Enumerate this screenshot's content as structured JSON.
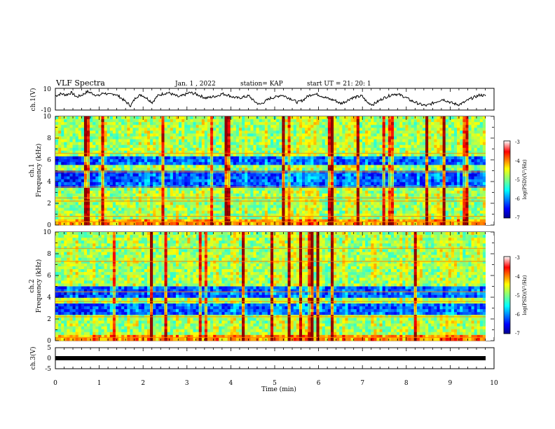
{
  "header": {
    "title": "VLF Spectra",
    "date": "Jan. 1 , 2022",
    "station": "station= KAP",
    "start": "start UT =  21: 20: 1"
  },
  "chart_data": [
    {
      "type": "line",
      "ylabel": "ch.1(V)",
      "ylim": [
        -10,
        10
      ],
      "yticks": [
        "10",
        "-10"
      ],
      "xlim": [
        0,
        10
      ],
      "series": [
        {
          "values": [
            3,
            5,
            4,
            6,
            2,
            4,
            7,
            5,
            3,
            6,
            4,
            5,
            2,
            -2,
            -6,
            2,
            4,
            1,
            -3,
            3,
            5,
            6,
            4,
            2,
            4,
            6,
            5,
            3,
            1,
            2,
            3,
            5,
            4,
            2,
            1,
            2,
            3,
            -2,
            -5,
            -2,
            1,
            2,
            4,
            2,
            0,
            -3,
            -1,
            3,
            5,
            4,
            2,
            0,
            -1,
            -4,
            -2,
            1,
            2,
            3,
            -3,
            -5,
            -2,
            1,
            3,
            5,
            4,
            2,
            -1,
            -3,
            -5,
            -6,
            -4,
            -2,
            0,
            -2,
            -4,
            -5,
            -3,
            0,
            2,
            4,
            3
          ]
        }
      ]
    },
    {
      "type": "heatmap",
      "ylabel": "ch.1\nFrequency (kHz)",
      "ylim": [
        0,
        10
      ],
      "yticks": [
        "0",
        "2",
        "4",
        "6",
        "8",
        "10"
      ],
      "xlim": [
        0,
        9.8
      ],
      "colorbar": {
        "label": "log(PSD)(V²/Hz)",
        "range": [
          -7,
          -3
        ],
        "ticks": [
          "-3",
          "-4",
          "-5",
          "-6",
          "-7"
        ]
      },
      "notes": "dense broadband noise; low power (blue) near 3.5–5 kHz and 5.5–6.5 kHz; strong red/orange horizontal lines near 0.3, 0.8, 2.2, 2.5, 3.5, 4.9, 6.6 kHz; many vertical red impulsive bursts"
    },
    {
      "type": "heatmap",
      "ylabel": "ch.2\nFrequency (kHz)",
      "ylim": [
        0,
        10
      ],
      "yticks": [
        "0",
        "2",
        "4",
        "6",
        "8",
        "10"
      ],
      "xlim": [
        0,
        9.8
      ],
      "colorbar": {
        "label": "log(PSD)(V²/Hz)",
        "range": [
          -7,
          -3
        ],
        "ticks": [
          "-3",
          "-4",
          "-5",
          "-6",
          "-7"
        ]
      },
      "notes": "similar to ch.1; low power (blue) near 2.5–3.5 kHz and 4–5 kHz; horizontal lines near 0.3, 2.2, 3.6, 4.5, 7.3, 8.5 kHz"
    },
    {
      "type": "line",
      "ylabel": "ch.3(V)",
      "ylim": [
        -5,
        5
      ],
      "yticks": [
        "5",
        "0",
        "-5"
      ],
      "xlim": [
        0,
        10
      ],
      "series": [
        {
          "values": [
            0,
            0
          ]
        }
      ],
      "notes": "thick flat trace near 0 V across full span"
    }
  ],
  "xaxis": {
    "label": "Time (min)",
    "ticks": [
      "0",
      "1",
      "2",
      "3",
      "4",
      "5",
      "6",
      "7",
      "8",
      "9",
      "10"
    ]
  },
  "colors": {
    "jet": [
      "#00008f",
      "#0000ff",
      "#0080ff",
      "#00ffff",
      "#80ff80",
      "#ffff00",
      "#ff8000",
      "#ff0000",
      "#800000"
    ]
  }
}
